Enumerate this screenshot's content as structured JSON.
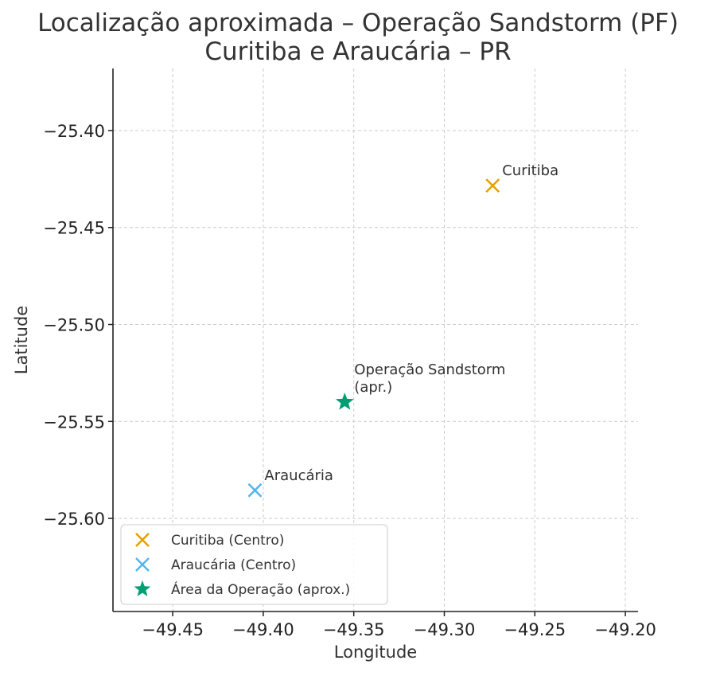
{
  "chart_data": {
    "type": "scatter",
    "title": [
      "Localização aproximada – Operação Sandstorm (PF)",
      "Curitiba e Araucária – PR"
    ],
    "xlabel": "Longitude",
    "ylabel": "Latitude",
    "xlim": [
      -49.483,
      -49.193
    ],
    "ylim": [
      -25.648,
      -25.368
    ],
    "xticks": [
      -49.45,
      -49.4,
      -49.35,
      -49.3,
      -49.25,
      -49.2
    ],
    "xtick_labels": [
      "−49.45",
      "−49.40",
      "−49.35",
      "−49.30",
      "−49.25",
      "−49.20"
    ],
    "yticks": [
      -25.4,
      -25.45,
      -25.5,
      -25.55,
      -25.6
    ],
    "ytick_labels": [
      "−25.40",
      "−25.45",
      "−25.50",
      "−25.55",
      "−25.60"
    ],
    "grid": true,
    "legend_position": "lower-left",
    "series": [
      {
        "name": "Curitiba (Centro)",
        "marker": "x",
        "color": "#E69F00",
        "points": [
          {
            "x": -49.2733,
            "y": -25.4284,
            "label": "Curitiba"
          }
        ]
      },
      {
        "name": "Araucária (Centro)",
        "marker": "x",
        "color": "#56B4E9",
        "points": [
          {
            "x": -49.4046,
            "y": -25.5855,
            "label": "Araucária"
          }
        ]
      },
      {
        "name": "Área da Operação (aprox.)",
        "marker": "star",
        "color": "#009E73",
        "points": [
          {
            "x": -49.355,
            "y": -25.54,
            "label": "Operação Sandstorm\n(apr.)"
          }
        ]
      }
    ]
  }
}
